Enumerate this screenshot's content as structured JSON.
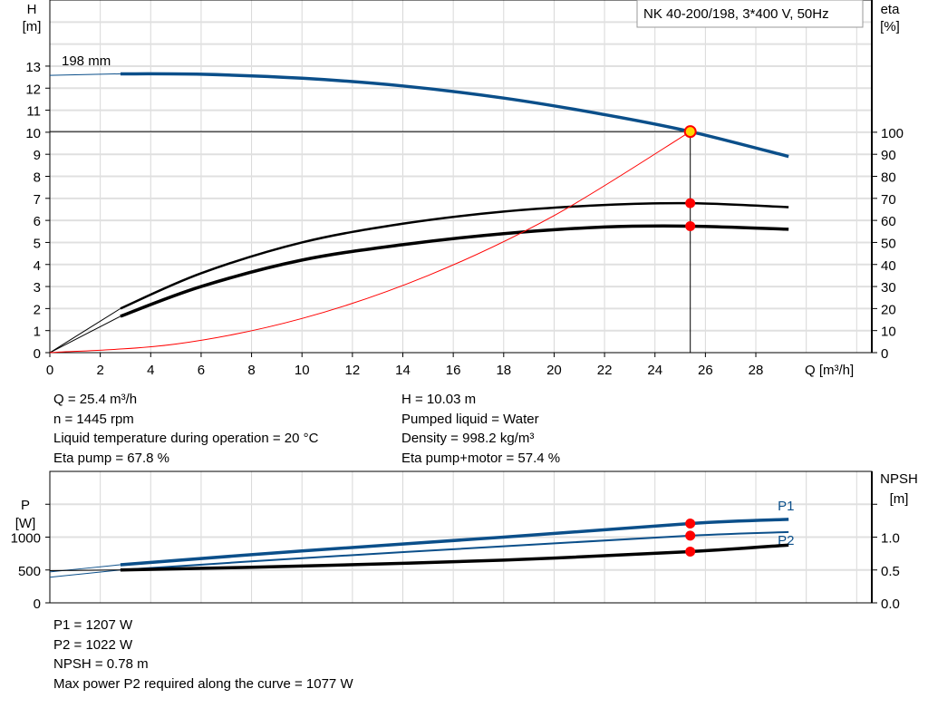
{
  "chart_data": [
    {
      "type": "line",
      "title": "NK 40-200/198, 3*400 V, 50Hz",
      "xlabel": "Q [m³/h]",
      "ylabel": "H [m]",
      "y2label": "eta [%]",
      "xlim": [
        0,
        32.6
      ],
      "ylim": [
        0,
        16
      ],
      "y2lim": [
        0,
        160
      ],
      "xticks": [
        0,
        2,
        4,
        6,
        8,
        10,
        12,
        14,
        16,
        18,
        20,
        22,
        24,
        26,
        28
      ],
      "yticks": [
        0,
        1,
        2,
        3,
        4,
        5,
        6,
        7,
        8,
        9,
        10,
        11,
        12,
        13
      ],
      "y2ticks": [
        0,
        10,
        20,
        30,
        40,
        50,
        60,
        70,
        80,
        90,
        100
      ],
      "grid": true,
      "curve_label": "198 mm",
      "series": [
        {
          "key": "H",
          "axis": "left",
          "color": "#0b4f8a",
          "x": [
            0,
            2.8,
            6,
            10,
            14,
            18,
            22,
            25.4,
            29.3
          ],
          "y": [
            12.58,
            12.65,
            12.63,
            12.45,
            12.1,
            11.55,
            10.8,
            10.03,
            8.9
          ]
        },
        {
          "key": "eta_pump",
          "axis": "right",
          "color": "#000000",
          "x": [
            0,
            2.8,
            6,
            10,
            14,
            18,
            22,
            25.4,
            29.3
          ],
          "y": [
            0,
            20,
            36,
            50,
            58.5,
            64,
            67,
            67.8,
            66
          ]
        },
        {
          "key": "eta_pump_motor",
          "axis": "right",
          "color": "#000000",
          "x": [
            0,
            2.8,
            6,
            10,
            14,
            18,
            22,
            25.4,
            29.3
          ],
          "y": [
            0,
            16.5,
            30,
            42,
            49,
            54,
            57,
            57.4,
            56
          ]
        },
        {
          "key": "system",
          "axis": "left",
          "color": "#ff0000",
          "x": [
            0,
            5,
            10,
            15,
            20,
            25.4
          ],
          "y": [
            0,
            0.39,
            1.55,
            3.5,
            6.22,
            10.03
          ]
        }
      ],
      "duty_point": {
        "Q": 25.4,
        "H": 10.03,
        "eta_pump": 67.8,
        "eta_pump_motor": 57.4
      }
    },
    {
      "type": "line",
      "ylabel": "P [W]",
      "y2label": "NPSH [m]",
      "xlim": [
        0,
        32.6
      ],
      "ylim": [
        0,
        2000
      ],
      "y2lim": [
        0,
        2.0
      ],
      "yticks": [
        0,
        500,
        1000
      ],
      "y2ticks": [
        0.0,
        0.5,
        1.0
      ],
      "grid": true,
      "series": [
        {
          "name": "P1",
          "axis": "left",
          "color": "#0b4f8a",
          "x": [
            0,
            2.8,
            10,
            18,
            25.4,
            29.3
          ],
          "y": [
            470,
            580,
            790,
            1000,
            1207,
            1270
          ]
        },
        {
          "name": "P2",
          "axis": "left",
          "color": "#0b4f8a",
          "x": [
            0,
            2.8,
            10,
            18,
            25.4,
            29.3
          ],
          "y": [
            390,
            500,
            680,
            860,
            1022,
            1077
          ]
        },
        {
          "key": "NPSH",
          "axis": "right",
          "color": "#000000",
          "x": [
            0,
            2.8,
            10,
            18,
            25.4,
            29.3
          ],
          "y": [
            0.49,
            0.5,
            0.56,
            0.65,
            0.78,
            0.88
          ]
        }
      ],
      "duty_point": {
        "Q": 25.4,
        "P1": 1207,
        "P2": 1022,
        "NPSH": 0.78
      }
    }
  ],
  "info_top": {
    "left": [
      "Q = 25.4 m³/h",
      "n = 1445 rpm",
      "Liquid temperature during operation = 20 °C",
      "Eta pump = 67.8 %"
    ],
    "right": [
      "H = 10.03 m",
      "Pumped liquid = Water",
      "Density = 998.2 kg/m³",
      "Eta pump+motor = 57.4 %"
    ]
  },
  "info_bottom": [
    "P1 = 1207 W",
    "P2 = 1022 W",
    "NPSH = 0.78 m",
    "Max power P2 required along the curve = 1077 W"
  ],
  "labels": {
    "h": "H",
    "h_unit": "[m]",
    "eta": "eta",
    "eta_unit": "[%]",
    "q": "Q [m³/h]",
    "p": "P",
    "p_unit": "[W]",
    "npsh": "NPSH",
    "npsh_unit": "[m]"
  }
}
